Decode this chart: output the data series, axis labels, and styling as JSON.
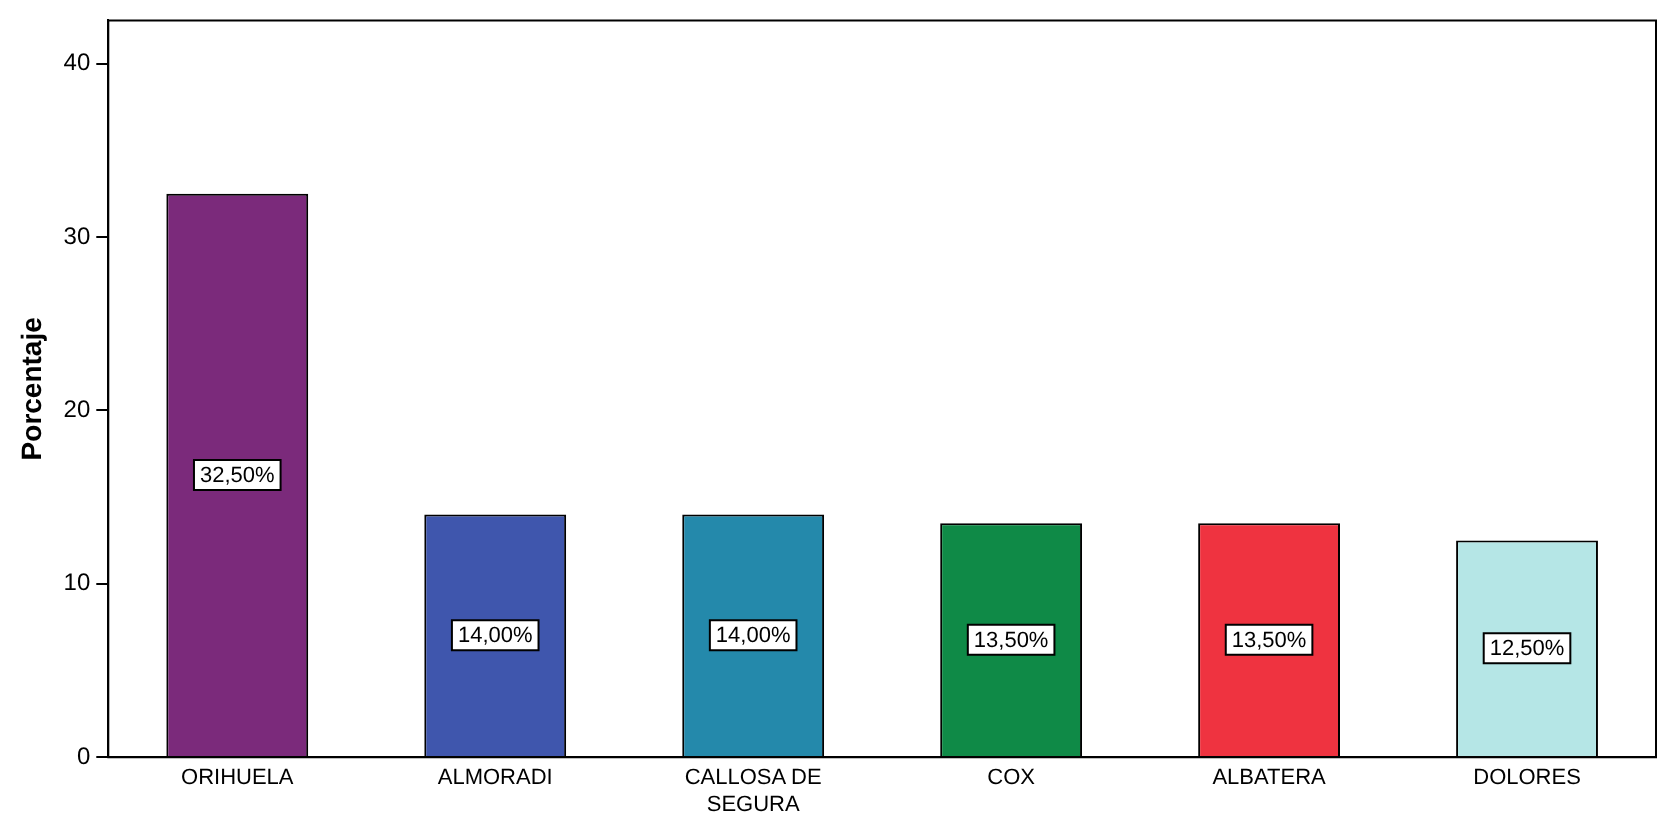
{
  "chart_data": {
    "type": "bar",
    "ylabel": "Porcentaje",
    "categories": [
      "ORIHUELA",
      "ALMORADI",
      "CALLOSA DE SEGURA",
      "COX",
      "ALBATERA",
      "DOLORES"
    ],
    "values": [
      32.5,
      14,
      14,
      13.5,
      13.5,
      12.5
    ],
    "colors": [
      "#7b2a7b",
      "#3f56ad",
      "#2489ab",
      "#0f8a47",
      "#ef3340",
      "#b5e6e6"
    ],
    "value_labels": [
      "32,50%",
      "14,00%",
      "14,00%",
      "13,50%",
      "13,50%",
      "12,50%"
    ],
    "ylim": [
      0,
      42.5
    ],
    "yticks": [
      0,
      10,
      20,
      30,
      40
    ],
    "grid": false,
    "legend": false
  }
}
